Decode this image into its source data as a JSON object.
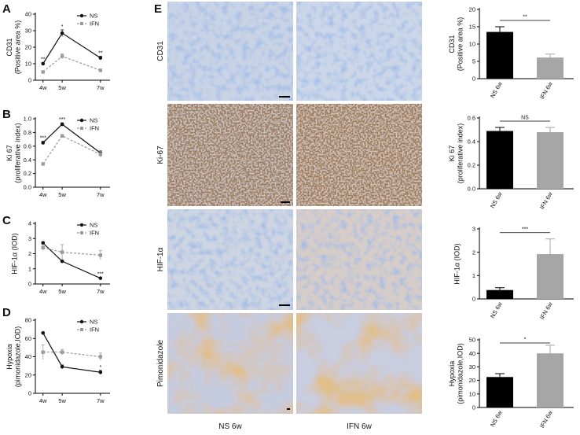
{
  "panel_letters": {
    "A": "A",
    "B": "B",
    "C": "C",
    "D": "D",
    "E": "E"
  },
  "legend": {
    "ns": "NS",
    "ifn": "IFN"
  },
  "colors": {
    "ns": "#111111",
    "ifn": "#9a9a9a",
    "ns_bar": "#000000",
    "ifn_bar": "#a6a6a6"
  },
  "micrographs": {
    "row_labels": [
      "CD31",
      "Ki-67",
      "HIF-1α",
      "Pimonidazole"
    ],
    "col_labels": [
      "NS 6w",
      "IFN 6w"
    ]
  },
  "chart_data": [
    {
      "id": "A",
      "type": "line",
      "ylabel_line1": "CD31",
      "ylabel_line2": "(Positive area %)",
      "categories": [
        "4w",
        "5w",
        "7w"
      ],
      "x": [
        4,
        5,
        7
      ],
      "ylim": [
        0,
        40
      ],
      "yticks": [
        0,
        10,
        20,
        30,
        40
      ],
      "series": [
        {
          "name": "NS",
          "values": [
            10,
            28.5,
            13.5
          ],
          "err": [
            0.8,
            2.0,
            1.0
          ],
          "sig": [
            "**",
            "*",
            "**"
          ]
        },
        {
          "name": "IFN",
          "values": [
            5,
            14.5,
            6
          ],
          "err": [
            0.5,
            1.5,
            0.6
          ]
        }
      ]
    },
    {
      "id": "B",
      "type": "line",
      "ylabel_line1": "Ki 67",
      "ylabel_line2": "(proliferative index)",
      "categories": [
        "4w",
        "5w",
        "7w"
      ],
      "x": [
        4,
        5,
        7
      ],
      "ylim": [
        0.0,
        1.0
      ],
      "yticks": [
        0.0,
        0.2,
        0.4,
        0.6,
        0.8,
        1.0
      ],
      "series": [
        {
          "name": "NS",
          "values": [
            0.65,
            0.92,
            0.5
          ],
          "err": [
            0.02,
            0.02,
            0.03
          ],
          "sig": [
            "***",
            "***",
            ""
          ]
        },
        {
          "name": "IFN",
          "values": [
            0.34,
            0.75,
            0.48
          ],
          "err": [
            0.01,
            0.01,
            0.04
          ]
        }
      ]
    },
    {
      "id": "C",
      "type": "line",
      "ylabel_line1": "HIF-1α (IOD)",
      "ylabel_line2": "",
      "categories": [
        "4w",
        "5w",
        "7w"
      ],
      "x": [
        4,
        5,
        7
      ],
      "ylim": [
        0,
        4
      ],
      "yticks": [
        0,
        1,
        2,
        3,
        4
      ],
      "series": [
        {
          "name": "NS",
          "values": [
            2.7,
            1.5,
            0.38
          ],
          "err": [
            0.1,
            0.05,
            0.05
          ],
          "sig": [
            "",
            "",
            "***"
          ]
        },
        {
          "name": "IFN",
          "values": [
            2.4,
            2.1,
            1.9
          ],
          "err": [
            0.2,
            0.5,
            0.3
          ]
        }
      ]
    },
    {
      "id": "D",
      "type": "line",
      "ylabel_line1": "Hypoxia",
      "ylabel_line2": "(pimonidazole,IOD)",
      "categories": [
        "4w",
        "5w",
        "7w"
      ],
      "x": [
        4,
        5,
        7
      ],
      "ylim": [
        0,
        80
      ],
      "yticks": [
        0,
        20,
        40,
        60,
        80
      ],
      "series": [
        {
          "name": "NS",
          "values": [
            66,
            29,
            23
          ],
          "err": [
            1,
            2,
            2
          ],
          "sig": [
            "",
            "",
            "*"
          ]
        },
        {
          "name": "IFN",
          "values": [
            45,
            45,
            40
          ],
          "err": [
            8,
            3,
            4
          ]
        }
      ]
    },
    {
      "id": "E1",
      "type": "bar",
      "ylabel_line1": "CD31",
      "ylabel_line2": "(Positive area %)",
      "categories": [
        "NS 6w",
        "IFN 6w"
      ],
      "values": [
        13.5,
        6.1
      ],
      "err": [
        1.5,
        1.0
      ],
      "ylim": [
        0,
        20
      ],
      "yticks": [
        0,
        5,
        10,
        15,
        20
      ],
      "sig": "**"
    },
    {
      "id": "E2",
      "type": "bar",
      "ylabel_line1": "Ki 67",
      "ylabel_line2": "(proliferative index)",
      "categories": [
        "NS 6w",
        "IFN 6w"
      ],
      "values": [
        0.49,
        0.48
      ],
      "err": [
        0.03,
        0.04
      ],
      "ylim": [
        0.0,
        0.6
      ],
      "yticks": [
        0.0,
        0.2,
        0.4,
        0.6
      ],
      "sig": "NS"
    },
    {
      "id": "E3",
      "type": "bar",
      "ylabel_line1": "HIF-1α (IOD)",
      "ylabel_line2": "",
      "categories": [
        "NS 6w",
        "IFN 6w"
      ],
      "values": [
        0.38,
        1.92
      ],
      "err": [
        0.1,
        0.65
      ],
      "ylim": [
        0,
        3
      ],
      "yticks": [
        0,
        1,
        2,
        3
      ],
      "sig": "***"
    },
    {
      "id": "E4",
      "type": "bar",
      "ylabel_line1": "Hypoxia",
      "ylabel_line2": "(pimonidazole,IOD)",
      "categories": [
        "NS 6w",
        "IFN 6w"
      ],
      "values": [
        22.5,
        40
      ],
      "err": [
        2.5,
        6
      ],
      "ylim": [
        0,
        50
      ],
      "yticks": [
        0,
        10,
        20,
        30,
        40,
        50
      ],
      "sig": "*"
    }
  ]
}
